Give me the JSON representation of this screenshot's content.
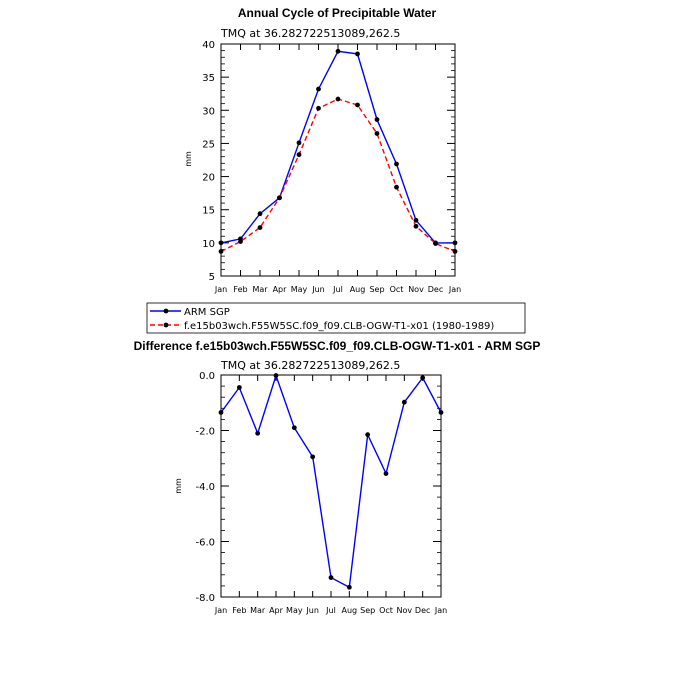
{
  "chart_data": [
    {
      "type": "line",
      "title": "Annual Cycle of Precipitable Water",
      "subtitle": "TMQ  at  36.282722513089,262.5",
      "xlabel": "",
      "ylabel": "mm",
      "categories": [
        "Jan",
        "Feb",
        "Mar",
        "Apr",
        "May",
        "Jun",
        "Jul",
        "Aug",
        "Sep",
        "Oct",
        "Nov",
        "Dec",
        "Jan"
      ],
      "ylim": [
        5,
        40
      ],
      "yticks": [
        "5",
        "10",
        "15",
        "20",
        "25",
        "30",
        "35",
        "40"
      ],
      "series": [
        {
          "name": "ARM SGP",
          "color": "#0000ff",
          "style": "solid",
          "values": [
            10.0,
            10.6,
            14.4,
            16.8,
            25.1,
            33.2,
            38.9,
            38.5,
            28.6,
            21.9,
            13.4,
            10.0,
            10.0
          ]
        },
        {
          "name": "f.e15b03wch.F55W5SC.f09_f09.CLB-OGW-T1-x01 (1980-1989)",
          "color": "#ff0000",
          "style": "dashed",
          "values": [
            8.7,
            10.2,
            12.3,
            16.8,
            23.3,
            30.3,
            31.7,
            30.8,
            26.5,
            18.4,
            12.5,
            9.9,
            8.7
          ]
        }
      ],
      "legend": [
        "ARM SGP",
        "f.e15b03wch.F55W5SC.f09_f09.CLB-OGW-T1-x01 (1980-1989)"
      ]
    },
    {
      "type": "line",
      "title": "Difference f.e15b03wch.F55W5SC.f09_f09.CLB-OGW-T1-x01 - ARM SGP",
      "subtitle": "TMQ  at  36.282722513089,262.5",
      "xlabel": "",
      "ylabel": "mm",
      "categories": [
        "Jan",
        "Feb",
        "Mar",
        "Apr",
        "May",
        "Jun",
        "Jul",
        "Aug",
        "Sep",
        "Oct",
        "Nov",
        "Dec",
        "Jan"
      ],
      "ylim": [
        -8,
        0
      ],
      "yticks": [
        "-8.0",
        "-6.0",
        "-4.0",
        "-2.0",
        "0.0"
      ],
      "series": [
        {
          "name": "Difference",
          "color": "#0000ff",
          "style": "solid",
          "values": [
            -1.35,
            -0.45,
            -2.1,
            -0.02,
            -1.9,
            -2.95,
            -7.3,
            -7.65,
            -2.15,
            -3.55,
            -0.98,
            -0.1,
            -1.35
          ]
        }
      ]
    }
  ]
}
